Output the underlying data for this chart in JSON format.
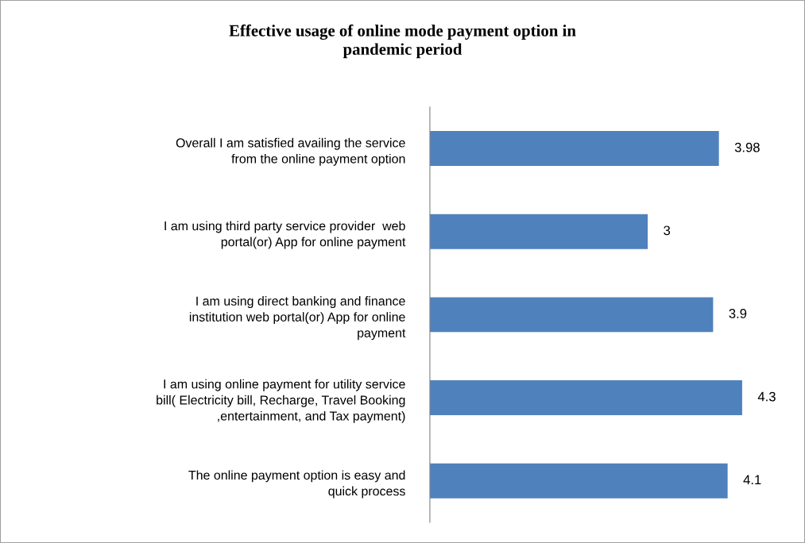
{
  "chart_data": {
    "type": "bar",
    "orientation": "horizontal",
    "title": "Effective usage of online mode payment option in\npandemic period",
    "categories": [
      "Overall I am satisfied availing the service\nfrom the online payment option",
      "I am using third party service provider  web\nportal(or) App for online payment",
      "I am using direct banking and finance\ninstitution web portal(or) App for online\npayment",
      "I am using online payment for utility service\nbill( Electricity bill, Recharge, Travel Booking\n,entertainment, and Tax payment)",
      "The online payment option is easy and\nquick process"
    ],
    "values": [
      3.98,
      3,
      3.9,
      4.3,
      4.1
    ],
    "color": "#4f81bd",
    "data_labels": true,
    "tick_labels": "y"
  }
}
